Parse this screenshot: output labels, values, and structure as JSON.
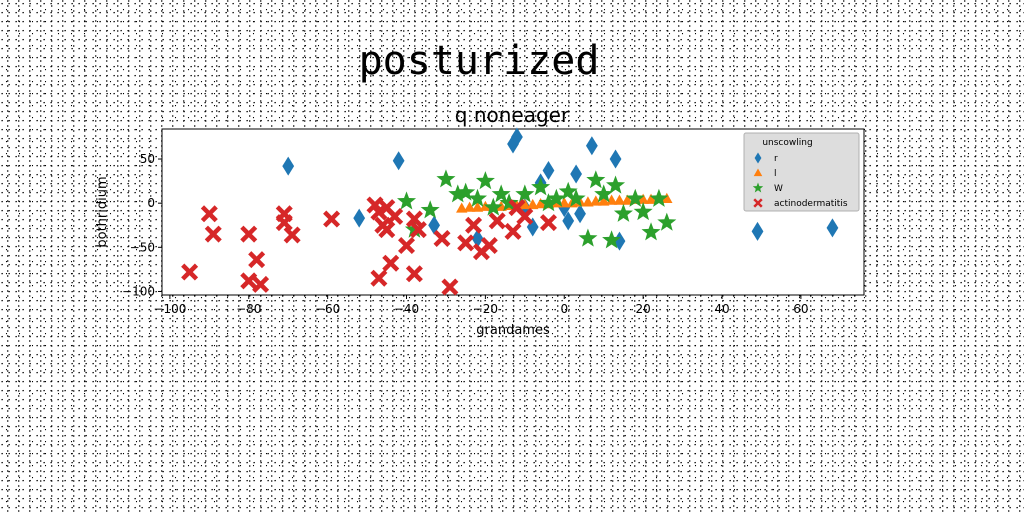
{
  "figure": {
    "suptitle": "posturized"
  },
  "chart_data": {
    "type": "scatter",
    "title": "q noneager",
    "xlabel": "grandames",
    "ylabel": "bothridium",
    "xlim": [
      -102,
      76
    ],
    "ylim": [
      -104,
      84
    ],
    "xticks": [
      -100,
      -80,
      -60,
      -40,
      -20,
      0,
      20,
      40,
      60
    ],
    "yticks": [
      -100,
      -50,
      0,
      50
    ],
    "grid": false,
    "legend": {
      "title": "unscowling",
      "placement": "upper-right"
    },
    "series": [
      {
        "name": "r",
        "marker": "diamond",
        "color": "#1f77b4",
        "points": [
          [
            -70,
            42
          ],
          [
            -52,
            -17
          ],
          [
            -42,
            48
          ],
          [
            -33,
            -25
          ],
          [
            -22,
            -40
          ],
          [
            -13,
            67
          ],
          [
            -12,
            75
          ],
          [
            -10,
            -5
          ],
          [
            -8,
            -27
          ],
          [
            -6,
            23
          ],
          [
            -4,
            37
          ],
          [
            0,
            -5
          ],
          [
            1,
            -20
          ],
          [
            3,
            33
          ],
          [
            4,
            -12
          ],
          [
            7,
            65
          ],
          [
            13,
            50
          ],
          [
            14,
            -43
          ],
          [
            49,
            -32
          ],
          [
            68,
            -28
          ]
        ]
      },
      {
        "name": "l",
        "marker": "triangle",
        "color": "#ff7f0e",
        "points": [
          [
            -26,
            -6
          ],
          [
            -24,
            -5
          ],
          [
            -22,
            -5
          ],
          [
            -20,
            -4
          ],
          [
            -18,
            -4
          ],
          [
            -16,
            -4
          ],
          [
            -14,
            -3
          ],
          [
            -12,
            -3
          ],
          [
            -10,
            -2
          ],
          [
            -8,
            -2
          ],
          [
            -6,
            -1
          ],
          [
            -4,
            -1
          ],
          [
            -2,
            0
          ],
          [
            0,
            0
          ],
          [
            2,
            0
          ],
          [
            4,
            1
          ],
          [
            6,
            1
          ],
          [
            8,
            2
          ],
          [
            10,
            2
          ],
          [
            12,
            3
          ],
          [
            14,
            3
          ],
          [
            16,
            3
          ],
          [
            18,
            4
          ],
          [
            20,
            4
          ],
          [
            22,
            4
          ],
          [
            24,
            5
          ],
          [
            26,
            5
          ]
        ]
      },
      {
        "name": "W",
        "marker": "star",
        "color": "#2ca02c",
        "points": [
          [
            -40,
            2
          ],
          [
            -38,
            -30
          ],
          [
            -34,
            -8
          ],
          [
            -30,
            27
          ],
          [
            -27,
            10
          ],
          [
            -25,
            12
          ],
          [
            -22,
            5
          ],
          [
            -20,
            25
          ],
          [
            -18,
            -5
          ],
          [
            -16,
            10
          ],
          [
            -14,
            0
          ],
          [
            -10,
            10
          ],
          [
            -6,
            18
          ],
          [
            -4,
            0
          ],
          [
            -2,
            5
          ],
          [
            1,
            13
          ],
          [
            3,
            5
          ],
          [
            6,
            -40
          ],
          [
            8,
            26
          ],
          [
            10,
            10
          ],
          [
            12,
            -42
          ],
          [
            13,
            20
          ],
          [
            15,
            -12
          ],
          [
            18,
            5
          ],
          [
            20,
            -10
          ],
          [
            22,
            -33
          ],
          [
            24,
            5
          ],
          [
            26,
            -22
          ]
        ]
      },
      {
        "name": "actinodermatitis",
        "marker": "x",
        "color": "#d62728",
        "points": [
          [
            -95,
            -78
          ],
          [
            -90,
            -12
          ],
          [
            -89,
            -35
          ],
          [
            -80,
            -35
          ],
          [
            -80,
            -88
          ],
          [
            -78,
            -64
          ],
          [
            -77,
            -92
          ],
          [
            -71,
            -12
          ],
          [
            -71,
            -22
          ],
          [
            -69,
            -36
          ],
          [
            -59,
            -18
          ],
          [
            -48,
            -2
          ],
          [
            -47,
            -10
          ],
          [
            -47,
            -85
          ],
          [
            -46,
            -25
          ],
          [
            -45,
            -5
          ],
          [
            -45,
            -30
          ],
          [
            -44,
            -68
          ],
          [
            -43,
            -15
          ],
          [
            -40,
            -48
          ],
          [
            -38,
            -18
          ],
          [
            -38,
            -80
          ],
          [
            -37,
            -30
          ],
          [
            -31,
            -40
          ],
          [
            -29,
            -95
          ],
          [
            -25,
            -45
          ],
          [
            -23,
            -25
          ],
          [
            -21,
            -55
          ],
          [
            -19,
            -48
          ],
          [
            -17,
            -20
          ],
          [
            -13,
            -32
          ],
          [
            -12,
            -5
          ],
          [
            -10,
            -15
          ],
          [
            -4,
            -22
          ]
        ]
      }
    ]
  }
}
